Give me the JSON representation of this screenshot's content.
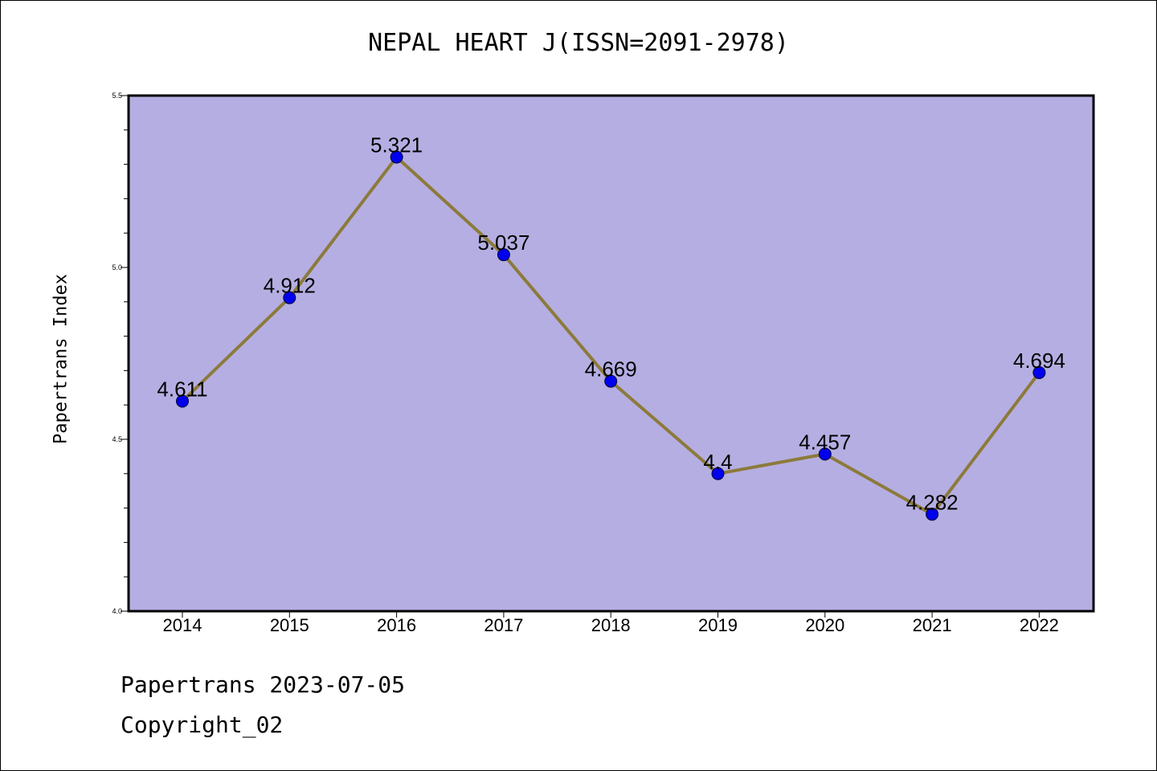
{
  "chart_data": {
    "type": "line",
    "title": "NEPAL HEART J(ISSN=2091-2978)",
    "ylabel": "Papertrans Index",
    "xlabel": "",
    "categories": [
      "2014",
      "2015",
      "2016",
      "2017",
      "2018",
      "2019",
      "2020",
      "2021",
      "2022"
    ],
    "series": [
      {
        "values": [
          4.611,
          4.912,
          5.321,
          5.037,
          4.669,
          4.4,
          4.457,
          4.282,
          4.694
        ],
        "data_labels": [
          "4.611",
          "4.912",
          "5.321",
          "5.037",
          "4.669",
          "4.4",
          "4.457",
          "4.282",
          "4.694"
        ]
      }
    ],
    "ylim": [
      4.0,
      5.5
    ],
    "y_ticks": [
      "4.0",
      "4.5",
      "5.0",
      "5.5"
    ],
    "grid": false,
    "colors": {
      "plot_background": "#b5aee2",
      "line": "#8c7a3b",
      "marker": "#0000ee"
    }
  },
  "footer": {
    "line1": "Papertrans 2023-07-05",
    "line2": "Copyright_02"
  }
}
